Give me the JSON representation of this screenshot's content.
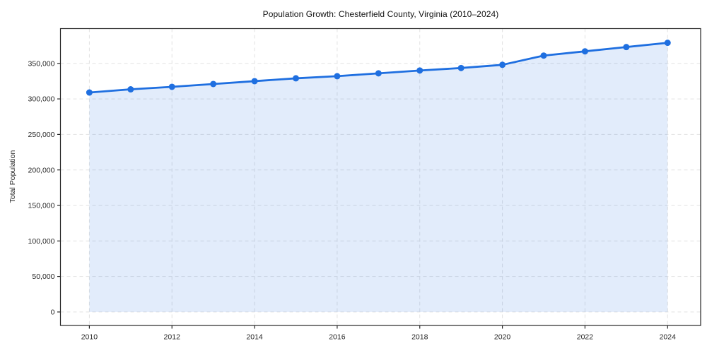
{
  "figure": {
    "background": "#ffffff"
  },
  "chart_data": {
    "type": "area",
    "title": "Population Growth: Chesterfield County, Virginia (2010–2024)",
    "xlabel": "",
    "ylabel": "Total Population",
    "x": [
      2010,
      2011,
      2012,
      2013,
      2014,
      2015,
      2016,
      2017,
      2018,
      2019,
      2020,
      2021,
      2022,
      2023,
      2024
    ],
    "values": [
      309000,
      313500,
      317000,
      321000,
      325000,
      329000,
      332000,
      336000,
      340000,
      343500,
      348000,
      361000,
      367000,
      373000,
      379000
    ],
    "xlim": [
      2009.3,
      2024.8
    ],
    "ylim": [
      -19000,
      399000
    ],
    "xticks": {
      "values": [
        2010,
        2012,
        2014,
        2016,
        2018,
        2020,
        2022,
        2024
      ],
      "labels": [
        "2010",
        "2012",
        "2014",
        "2016",
        "2018",
        "2020",
        "2022",
        "2024"
      ]
    },
    "yticks": {
      "values": [
        0,
        50000,
        100000,
        150000,
        200000,
        250000,
        300000,
        350000
      ],
      "labels": [
        "0",
        "50,000",
        "100,000",
        "150,000",
        "200,000",
        "250,000",
        "300,000",
        "350,000"
      ]
    },
    "grid": true,
    "grid_style": "dashed",
    "legend": "none",
    "marker": "circle",
    "colors": {
      "line": "#1f6fe0",
      "marker": "#1f6fe0",
      "area_fill": "rgba(31,111,224,0.13)",
      "grid": "#e2e2e2",
      "spine": "#262626",
      "tick_text": "#262626",
      "title_text": "#111111"
    }
  }
}
